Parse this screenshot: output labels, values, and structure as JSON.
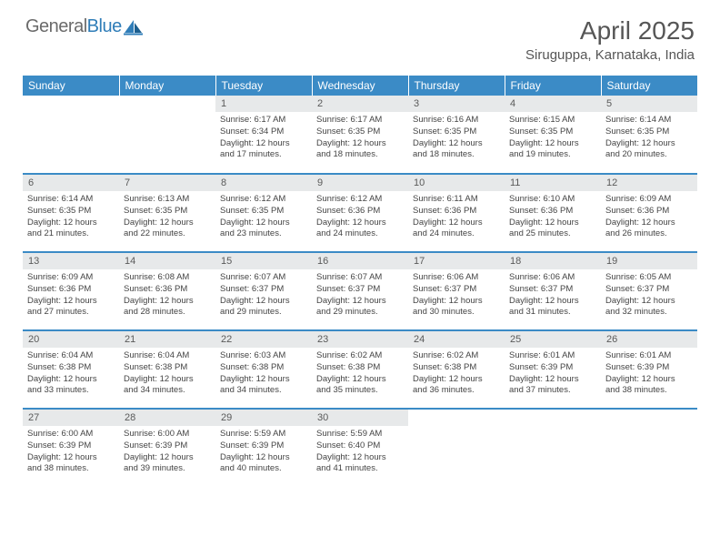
{
  "logo": {
    "text1": "General",
    "text2": "Blue"
  },
  "title": "April 2025",
  "location": "Siruguppa, Karnataka, India",
  "colors": {
    "header_bg": "#3b8bc6",
    "header_fg": "#ffffff",
    "daynum_bg": "#e7e9ea",
    "logo_gray": "#6b6b6b",
    "logo_blue": "#2f7db8",
    "title_color": "#565656",
    "body_text": "#444444"
  },
  "typography": {
    "month_title_pt": 28,
    "location_pt": 15,
    "dayheader_pt": 12,
    "daynum_pt": 11,
    "body_pt": 9.5
  },
  "day_headers": [
    "Sunday",
    "Monday",
    "Tuesday",
    "Wednesday",
    "Thursday",
    "Friday",
    "Saturday"
  ],
  "weeks": [
    [
      {
        "empty": true
      },
      {
        "empty": true
      },
      {
        "num": "1",
        "sunrise": "Sunrise: 6:17 AM",
        "sunset": "Sunset: 6:34 PM",
        "day1": "Daylight: 12 hours",
        "day2": "and 17 minutes."
      },
      {
        "num": "2",
        "sunrise": "Sunrise: 6:17 AM",
        "sunset": "Sunset: 6:35 PM",
        "day1": "Daylight: 12 hours",
        "day2": "and 18 minutes."
      },
      {
        "num": "3",
        "sunrise": "Sunrise: 6:16 AM",
        "sunset": "Sunset: 6:35 PM",
        "day1": "Daylight: 12 hours",
        "day2": "and 18 minutes."
      },
      {
        "num": "4",
        "sunrise": "Sunrise: 6:15 AM",
        "sunset": "Sunset: 6:35 PM",
        "day1": "Daylight: 12 hours",
        "day2": "and 19 minutes."
      },
      {
        "num": "5",
        "sunrise": "Sunrise: 6:14 AM",
        "sunset": "Sunset: 6:35 PM",
        "day1": "Daylight: 12 hours",
        "day2": "and 20 minutes."
      }
    ],
    [
      {
        "num": "6",
        "sunrise": "Sunrise: 6:14 AM",
        "sunset": "Sunset: 6:35 PM",
        "day1": "Daylight: 12 hours",
        "day2": "and 21 minutes."
      },
      {
        "num": "7",
        "sunrise": "Sunrise: 6:13 AM",
        "sunset": "Sunset: 6:35 PM",
        "day1": "Daylight: 12 hours",
        "day2": "and 22 minutes."
      },
      {
        "num": "8",
        "sunrise": "Sunrise: 6:12 AM",
        "sunset": "Sunset: 6:35 PM",
        "day1": "Daylight: 12 hours",
        "day2": "and 23 minutes."
      },
      {
        "num": "9",
        "sunrise": "Sunrise: 6:12 AM",
        "sunset": "Sunset: 6:36 PM",
        "day1": "Daylight: 12 hours",
        "day2": "and 24 minutes."
      },
      {
        "num": "10",
        "sunrise": "Sunrise: 6:11 AM",
        "sunset": "Sunset: 6:36 PM",
        "day1": "Daylight: 12 hours",
        "day2": "and 24 minutes."
      },
      {
        "num": "11",
        "sunrise": "Sunrise: 6:10 AM",
        "sunset": "Sunset: 6:36 PM",
        "day1": "Daylight: 12 hours",
        "day2": "and 25 minutes."
      },
      {
        "num": "12",
        "sunrise": "Sunrise: 6:09 AM",
        "sunset": "Sunset: 6:36 PM",
        "day1": "Daylight: 12 hours",
        "day2": "and 26 minutes."
      }
    ],
    [
      {
        "num": "13",
        "sunrise": "Sunrise: 6:09 AM",
        "sunset": "Sunset: 6:36 PM",
        "day1": "Daylight: 12 hours",
        "day2": "and 27 minutes."
      },
      {
        "num": "14",
        "sunrise": "Sunrise: 6:08 AM",
        "sunset": "Sunset: 6:36 PM",
        "day1": "Daylight: 12 hours",
        "day2": "and 28 minutes."
      },
      {
        "num": "15",
        "sunrise": "Sunrise: 6:07 AM",
        "sunset": "Sunset: 6:37 PM",
        "day1": "Daylight: 12 hours",
        "day2": "and 29 minutes."
      },
      {
        "num": "16",
        "sunrise": "Sunrise: 6:07 AM",
        "sunset": "Sunset: 6:37 PM",
        "day1": "Daylight: 12 hours",
        "day2": "and 29 minutes."
      },
      {
        "num": "17",
        "sunrise": "Sunrise: 6:06 AM",
        "sunset": "Sunset: 6:37 PM",
        "day1": "Daylight: 12 hours",
        "day2": "and 30 minutes."
      },
      {
        "num": "18",
        "sunrise": "Sunrise: 6:06 AM",
        "sunset": "Sunset: 6:37 PM",
        "day1": "Daylight: 12 hours",
        "day2": "and 31 minutes."
      },
      {
        "num": "19",
        "sunrise": "Sunrise: 6:05 AM",
        "sunset": "Sunset: 6:37 PM",
        "day1": "Daylight: 12 hours",
        "day2": "and 32 minutes."
      }
    ],
    [
      {
        "num": "20",
        "sunrise": "Sunrise: 6:04 AM",
        "sunset": "Sunset: 6:38 PM",
        "day1": "Daylight: 12 hours",
        "day2": "and 33 minutes."
      },
      {
        "num": "21",
        "sunrise": "Sunrise: 6:04 AM",
        "sunset": "Sunset: 6:38 PM",
        "day1": "Daylight: 12 hours",
        "day2": "and 34 minutes."
      },
      {
        "num": "22",
        "sunrise": "Sunrise: 6:03 AM",
        "sunset": "Sunset: 6:38 PM",
        "day1": "Daylight: 12 hours",
        "day2": "and 34 minutes."
      },
      {
        "num": "23",
        "sunrise": "Sunrise: 6:02 AM",
        "sunset": "Sunset: 6:38 PM",
        "day1": "Daylight: 12 hours",
        "day2": "and 35 minutes."
      },
      {
        "num": "24",
        "sunrise": "Sunrise: 6:02 AM",
        "sunset": "Sunset: 6:38 PM",
        "day1": "Daylight: 12 hours",
        "day2": "and 36 minutes."
      },
      {
        "num": "25",
        "sunrise": "Sunrise: 6:01 AM",
        "sunset": "Sunset: 6:39 PM",
        "day1": "Daylight: 12 hours",
        "day2": "and 37 minutes."
      },
      {
        "num": "26",
        "sunrise": "Sunrise: 6:01 AM",
        "sunset": "Sunset: 6:39 PM",
        "day1": "Daylight: 12 hours",
        "day2": "and 38 minutes."
      }
    ],
    [
      {
        "num": "27",
        "sunrise": "Sunrise: 6:00 AM",
        "sunset": "Sunset: 6:39 PM",
        "day1": "Daylight: 12 hours",
        "day2": "and 38 minutes."
      },
      {
        "num": "28",
        "sunrise": "Sunrise: 6:00 AM",
        "sunset": "Sunset: 6:39 PM",
        "day1": "Daylight: 12 hours",
        "day2": "and 39 minutes."
      },
      {
        "num": "29",
        "sunrise": "Sunrise: 5:59 AM",
        "sunset": "Sunset: 6:39 PM",
        "day1": "Daylight: 12 hours",
        "day2": "and 40 minutes."
      },
      {
        "num": "30",
        "sunrise": "Sunrise: 5:59 AM",
        "sunset": "Sunset: 6:40 PM",
        "day1": "Daylight: 12 hours",
        "day2": "and 41 minutes."
      },
      {
        "empty": true
      },
      {
        "empty": true
      },
      {
        "empty": true
      }
    ]
  ]
}
